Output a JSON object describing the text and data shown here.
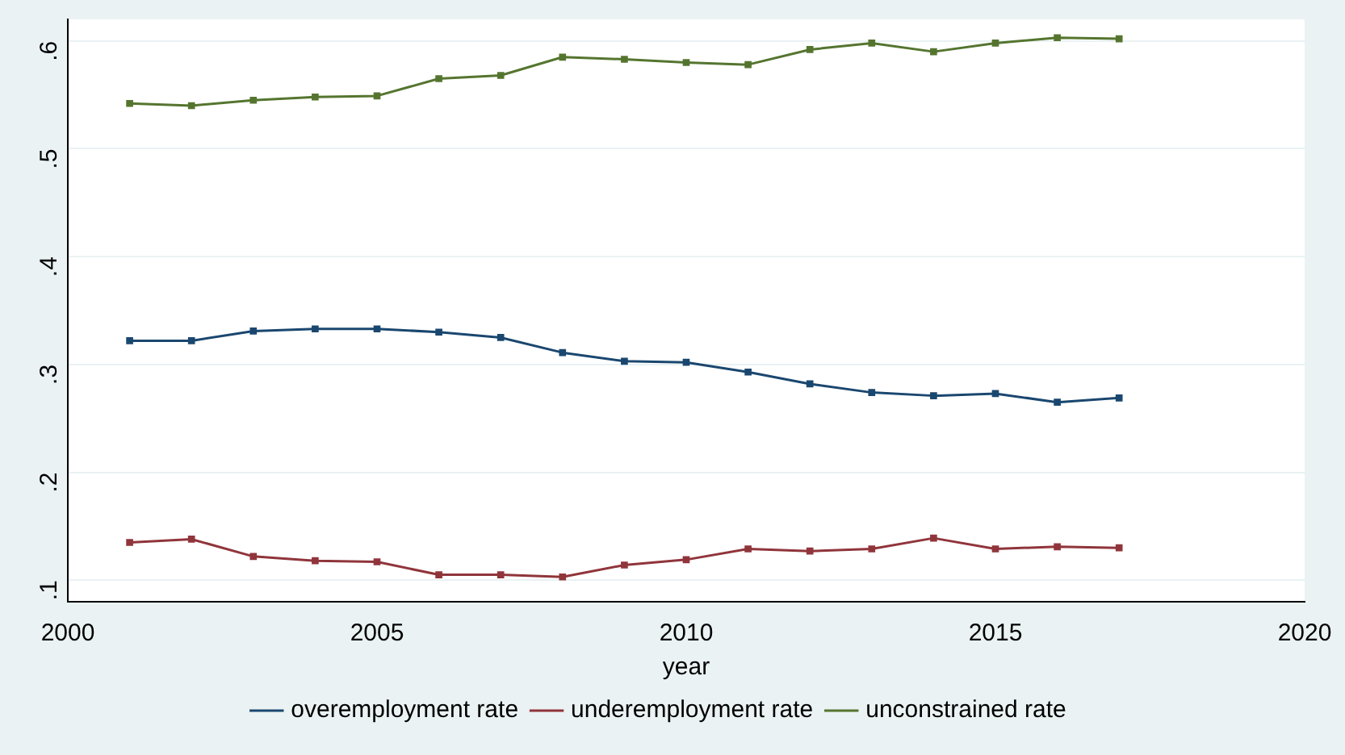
{
  "chart_data": {
    "type": "line",
    "xlabel": "year",
    "x": [
      2001,
      2002,
      2003,
      2004,
      2005,
      2006,
      2007,
      2008,
      2009,
      2010,
      2011,
      2012,
      2013,
      2014,
      2015,
      2016,
      2017
    ],
    "series": [
      {
        "name": "overemployment rate",
        "color": "#1a476f",
        "values": [
          0.322,
          0.322,
          0.331,
          0.333,
          0.333,
          0.33,
          0.325,
          0.311,
          0.303,
          0.302,
          0.293,
          0.282,
          0.274,
          0.271,
          0.273,
          0.265,
          0.269
        ]
      },
      {
        "name": "underemployment rate",
        "color": "#90353b",
        "values": [
          0.135,
          0.138,
          0.122,
          0.118,
          0.117,
          0.105,
          0.105,
          0.103,
          0.114,
          0.119,
          0.129,
          0.127,
          0.129,
          0.139,
          0.129,
          0.131,
          0.13
        ]
      },
      {
        "name": "unconstrained rate",
        "color": "#55752f",
        "values": [
          0.542,
          0.54,
          0.545,
          0.548,
          0.549,
          0.565,
          0.568,
          0.585,
          0.583,
          0.58,
          0.578,
          0.592,
          0.598,
          0.59,
          0.598,
          0.603,
          0.602
        ]
      }
    ],
    "xlim": [
      2000,
      2020
    ],
    "xticks": [
      2000,
      2005,
      2010,
      2015,
      2020
    ],
    "ylim": [
      0.08,
      0.62
    ],
    "yticks": [
      {
        "value": 0.1,
        "label": ".1"
      },
      {
        "value": 0.2,
        "label": ".2"
      },
      {
        "value": 0.3,
        "label": ".3"
      },
      {
        "value": 0.4,
        "label": ".4"
      },
      {
        "value": 0.5,
        "label": ".5"
      },
      {
        "value": 0.6,
        "label": ".6"
      }
    ],
    "grid": "y",
    "legend": "bottom",
    "marker": "square",
    "line_style": "solid"
  }
}
